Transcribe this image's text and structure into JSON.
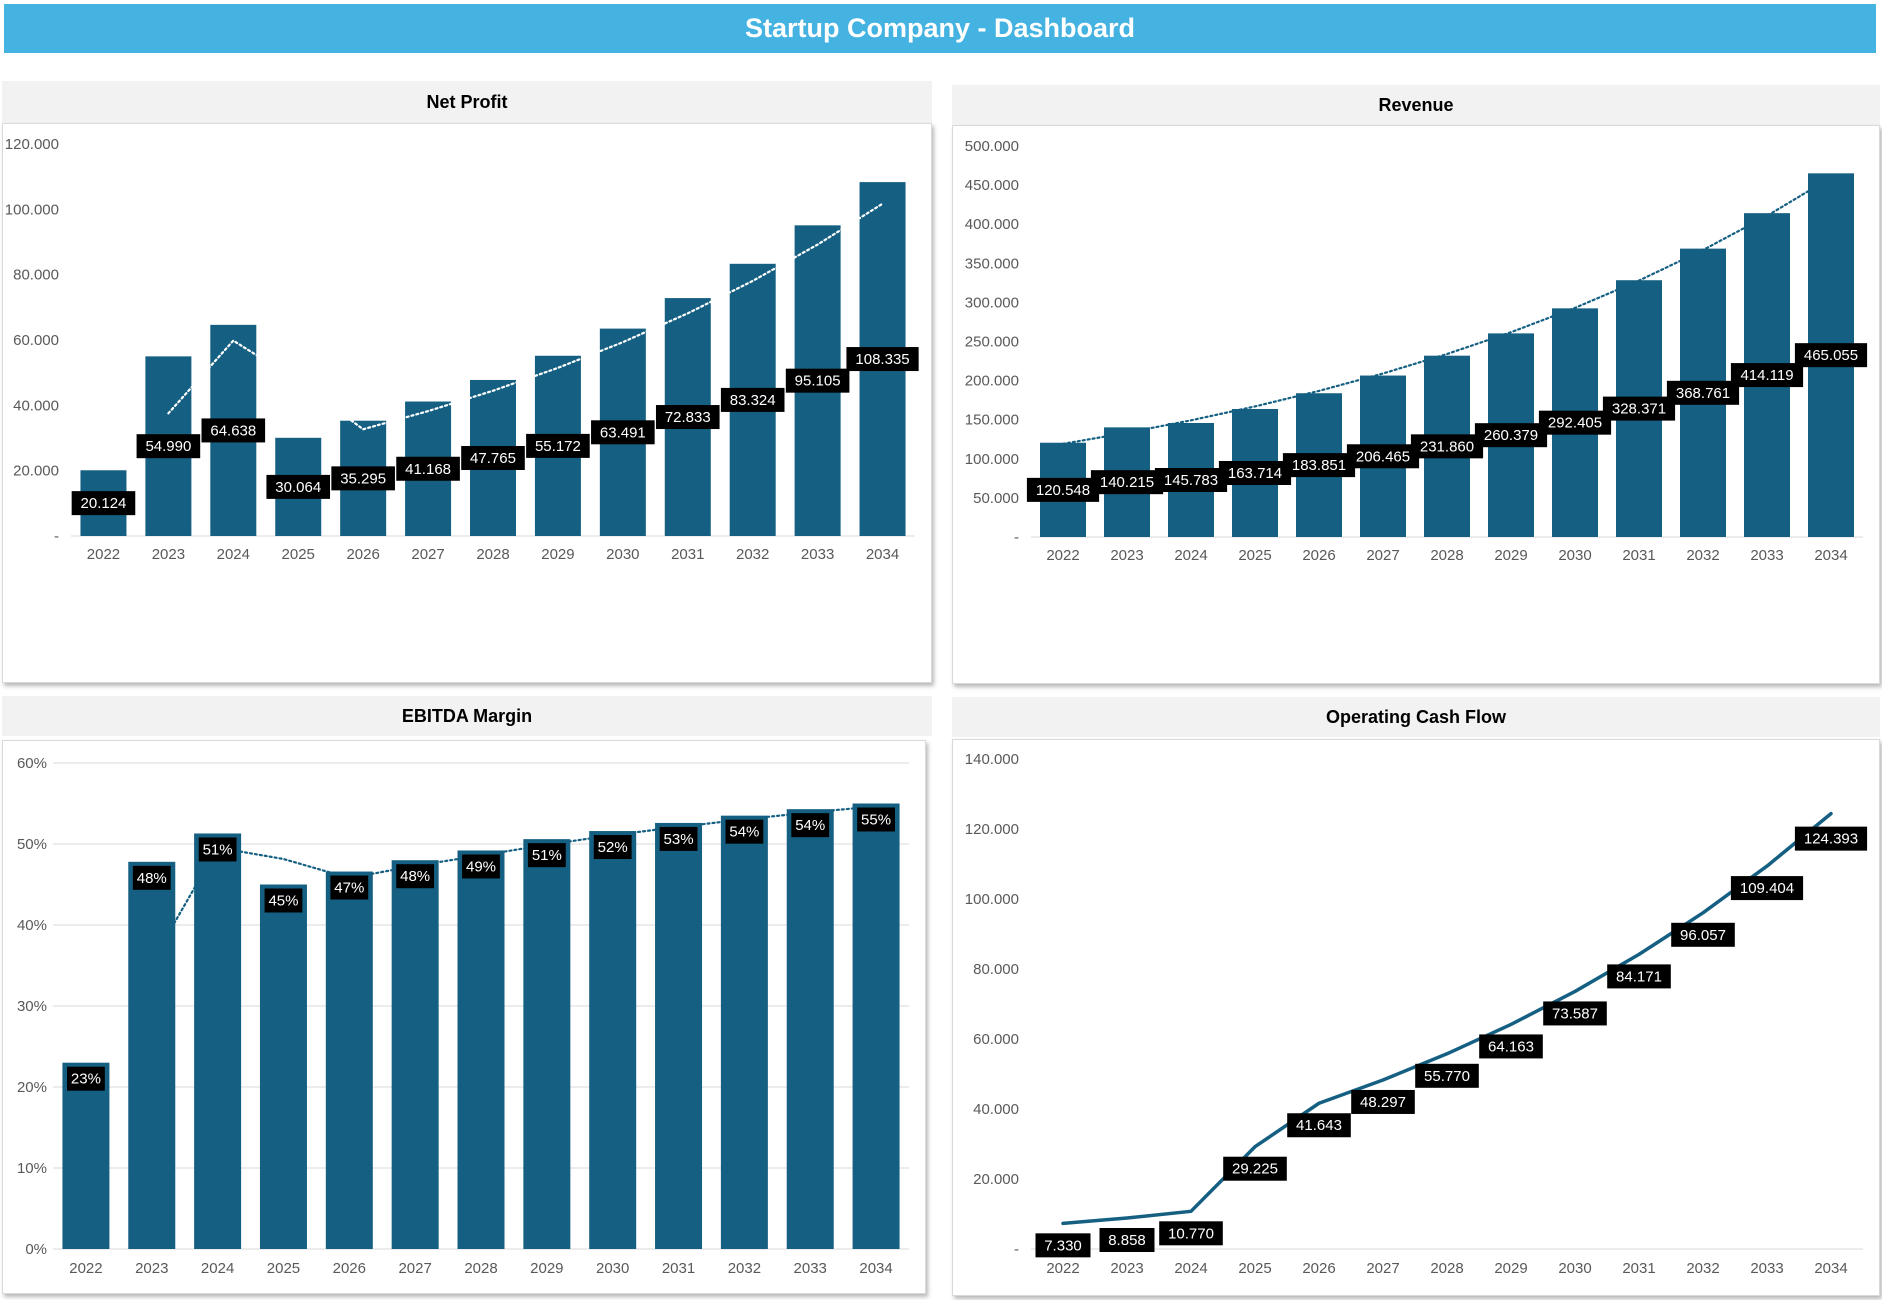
{
  "header": {
    "title": "Startup Company - Dashboard"
  },
  "colors": {
    "banner": "#44b3e1",
    "bar": "#156082",
    "label_bg": "#000000",
    "label_text": "#ffffff",
    "title_bg": "#f2f2f2"
  },
  "chart_data": [
    {
      "id": "net-profit",
      "type": "bar",
      "title": "Net Profit",
      "categories": [
        "2022",
        "2023",
        "2024",
        "2025",
        "2026",
        "2027",
        "2028",
        "2029",
        "2030",
        "2031",
        "2032",
        "2033",
        "2034"
      ],
      "values": [
        20124,
        54990,
        64638,
        30064,
        35295,
        41168,
        47765,
        55172,
        63491,
        72833,
        83324,
        95105,
        108335
      ],
      "data_labels": [
        "20.124",
        "54.990",
        "64.638",
        "30.064",
        "35.295",
        "41.168",
        "47.765",
        "55.172",
        "63.491",
        "72.833",
        "83.324",
        "95.105",
        "108.335"
      ],
      "trendline": {
        "type": "moving-average",
        "style": "dotted",
        "color": "#ffffff"
      },
      "ylim": [
        0,
        120000
      ],
      "yticks": [
        0,
        20000,
        40000,
        60000,
        80000,
        100000,
        120000
      ],
      "ytick_labels": [
        "-",
        "20.000",
        "40.000",
        "60.000",
        "80.000",
        "100.000",
        "120.000"
      ],
      "grid": false
    },
    {
      "id": "revenue",
      "type": "bar",
      "title": "Revenue",
      "categories": [
        "2022",
        "2023",
        "2024",
        "2025",
        "2026",
        "2027",
        "2028",
        "2029",
        "2030",
        "2031",
        "2032",
        "2033",
        "2034"
      ],
      "values": [
        120548,
        140215,
        145783,
        163714,
        183851,
        206465,
        231860,
        260379,
        292405,
        328371,
        368761,
        414119,
        465055
      ],
      "data_labels": [
        "120.548",
        "140.215",
        "145.783",
        "163.714",
        "183.851",
        "206.465",
        "231.860",
        "260.379",
        "292.405",
        "328.371",
        "368.761",
        "414.119",
        "465.055"
      ],
      "trendline": {
        "type": "exponential",
        "style": "dotted",
        "color": "#156082"
      },
      "ylim": [
        0,
        500000
      ],
      "yticks": [
        0,
        50000,
        100000,
        150000,
        200000,
        250000,
        300000,
        350000,
        400000,
        450000,
        500000
      ],
      "ytick_labels": [
        "-",
        "50.000",
        "100.000",
        "150.000",
        "200.000",
        "250.000",
        "300.000",
        "350.000",
        "400.000",
        "450.000",
        "500.000"
      ],
      "grid": false
    },
    {
      "id": "ebitda-margin",
      "type": "bar",
      "title": "EBITDA Margin",
      "categories": [
        "2022",
        "2023",
        "2024",
        "2025",
        "2026",
        "2027",
        "2028",
        "2029",
        "2030",
        "2031",
        "2032",
        "2033",
        "2034"
      ],
      "values": [
        0.23,
        0.478,
        0.513,
        0.45,
        0.466,
        0.48,
        0.492,
        0.506,
        0.516,
        0.526,
        0.535,
        0.543,
        0.55
      ],
      "data_labels": [
        "23%",
        "48%",
        "51%",
        "45%",
        "47%",
        "48%",
        "49%",
        "51%",
        "52%",
        "53%",
        "54%",
        "54%",
        "55%"
      ],
      "trendline": {
        "type": "moving-average",
        "style": "dotted",
        "color": "#156082"
      },
      "ylim": [
        0,
        0.6
      ],
      "yticks": [
        0,
        0.1,
        0.2,
        0.3,
        0.4,
        0.5,
        0.6
      ],
      "ytick_labels": [
        "0%",
        "10%",
        "20%",
        "30%",
        "40%",
        "50%",
        "60%"
      ],
      "grid": true
    },
    {
      "id": "operating-cash-flow",
      "type": "line",
      "title": "Operating Cash Flow",
      "categories": [
        "2022",
        "2023",
        "2024",
        "2025",
        "2026",
        "2027",
        "2028",
        "2029",
        "2030",
        "2031",
        "2032",
        "2033",
        "2034"
      ],
      "values": [
        7330,
        8858,
        10770,
        29225,
        41643,
        48297,
        55770,
        64163,
        73587,
        84171,
        96057,
        109404,
        124393
      ],
      "data_labels": [
        "7.330",
        "8.858",
        "10.770",
        "29.225",
        "41.643",
        "48.297",
        "55.770",
        "64.163",
        "73.587",
        "84.171",
        "96.057",
        "109.404",
        "124.393"
      ],
      "ylim": [
        0,
        140000
      ],
      "yticks": [
        0,
        20000,
        40000,
        60000,
        80000,
        100000,
        120000,
        140000
      ],
      "ytick_labels": [
        "-",
        "20.000",
        "40.000",
        "60.000",
        "80.000",
        "100.000",
        "120.000",
        "140.000"
      ],
      "grid": false
    }
  ]
}
